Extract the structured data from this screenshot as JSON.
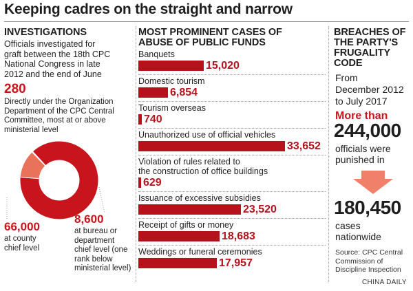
{
  "title": "Keeping cadres on the straight and narrow",
  "investigations": {
    "heading": "INVESTIGATIONS",
    "intro_lines": [
      "Officials investigated for",
      "graft between the 18th CPC",
      "National Congress in late",
      "2012 and the end of June"
    ],
    "central_value": "280",
    "central_desc_lines": [
      "Directly under the Organization",
      "Department of the CPC Central",
      "Committee, most at or above",
      "ministerial level"
    ],
    "county_value": "66,000",
    "county_desc_lines": [
      "at county",
      "chief level"
    ],
    "bureau_value": "8,600",
    "bureau_desc_lines": [
      "at bureau or",
      "department",
      "chief level (one",
      "rank below",
      "ministerial level)"
    ],
    "colors": {
      "county": "#c8141c",
      "bureau": "#e8735a",
      "central": "#f3b8a6"
    }
  },
  "cases": {
    "heading_lines": [
      "MOST PROMINENT CASES OF",
      "ABUSE OF PUBLIC FUNDS"
    ]
  },
  "chart_data": [
    {
      "type": "bar",
      "title": "MOST PROMINENT CASES OF ABUSE OF PUBLIC FUNDS",
      "categories": [
        "Banquets",
        "Domestic tourism",
        "Tourism overseas",
        "Unauthorized use of official vehicles",
        "Violation of rules related to the construction of office buildings",
        "Issuance of excessive subsidies",
        "Receipt of gifts or money",
        "Weddings or funeral ceremonies"
      ],
      "category_lines": [
        [
          "Banquets"
        ],
        [
          "Domestic tourism"
        ],
        [
          "Tourism overseas"
        ],
        [
          "Unauthorized use of official vehicles"
        ],
        [
          "Violation of rules related to",
          "the construction of office buildings"
        ],
        [
          "Issuance of excessive subsidies"
        ],
        [
          "Receipt of gifts or money"
        ],
        [
          "Weddings or funeral ceremonies"
        ]
      ],
      "values": [
        15020,
        6854,
        740,
        33652,
        629,
        23520,
        18683,
        17957
      ],
      "value_labels": [
        "15,020",
        "6,854",
        "740",
        "33,652",
        "629",
        "23,520",
        "18,683",
        "17,957"
      ],
      "color": "#b5121b"
    },
    {
      "type": "pie",
      "title": "INVESTIGATIONS",
      "labels": [
        "66,000",
        "8,600",
        "280"
      ],
      "values": [
        66000,
        8600,
        280
      ],
      "colors": [
        "#c8141c",
        "#e8735a",
        "#f3b8a6"
      ]
    }
  ],
  "breaches": {
    "heading_lines": [
      "BREACHES OF",
      "THE PARTY'S",
      "FRUGALITY",
      "CODE"
    ],
    "period_lines": [
      "From",
      "December 2012",
      "to July 2017"
    ],
    "more_than": "More than",
    "officials_value": "244,000",
    "officials_desc_lines": [
      "officials were",
      "punished in"
    ],
    "arrow_icon": "down-arrow-icon",
    "cases_value": "180,450",
    "cases_desc_lines": [
      "cases",
      "nationwide"
    ],
    "source_lines": [
      "Source: CPC Central",
      "Commission of",
      "Discipline Inspection"
    ]
  },
  "credit": "CHINA DAILY"
}
